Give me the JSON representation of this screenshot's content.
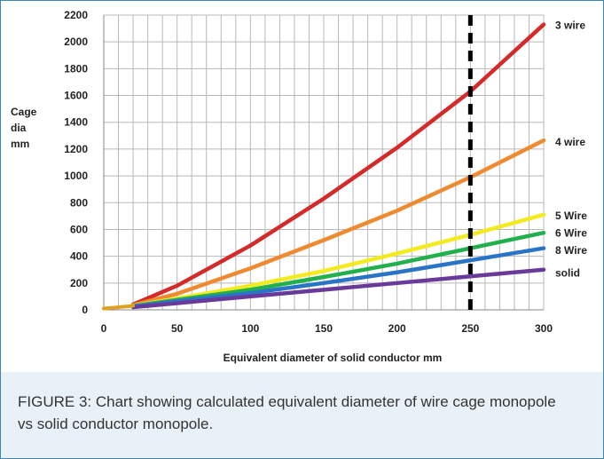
{
  "chart_data": {
    "type": "line",
    "xlabel": "Equivalent  diameter of solid conductor mm",
    "ylabel": [
      "Cage",
      "dia",
      "mm"
    ],
    "xlim": [
      0,
      300
    ],
    "ylim": [
      0,
      2200
    ],
    "xticks": [
      0,
      50,
      100,
      150,
      200,
      250,
      300
    ],
    "yticks": [
      0,
      200,
      400,
      600,
      800,
      1000,
      1200,
      1400,
      1600,
      1800,
      2000,
      2200
    ],
    "grid": true,
    "reference_line": {
      "x": 250,
      "style": "dashed",
      "color": "#000000"
    },
    "x": [
      20,
      50,
      100,
      150,
      200,
      250,
      300
    ],
    "series": [
      {
        "name": "3 wire",
        "values": [
          40,
          180,
          480,
          830,
          1210,
          1630,
          2130
        ],
        "color": "#d42a2a",
        "label_y": 2130
      },
      {
        "name": "4 wire",
        "values": [
          35,
          120,
          310,
          520,
          740,
          990,
          1265
        ],
        "color": "#f08a30",
        "label_y": 1260
      },
      {
        "name": "5 Wire",
        "values": [
          30,
          85,
          180,
          290,
          420,
          560,
          710
        ],
        "color": "#f4ea20",
        "label_y": 710
      },
      {
        "name": "6 Wire",
        "values": [
          28,
          75,
          150,
          245,
          345,
          460,
          575
        ],
        "color": "#22b04c",
        "label_y": 580
      },
      {
        "name": "8 Wire",
        "values": [
          25,
          65,
          125,
          200,
          280,
          370,
          460
        ],
        "color": "#2a74c8",
        "label_y": 450
      },
      {
        "name": "solid",
        "values": [
          20,
          50,
          100,
          150,
          200,
          250,
          300
        ],
        "color": "#6a3a9a",
        "label_y": 280
      }
    ]
  },
  "caption": "FIGURE 3: Chart showing calculated equivalent diameter of wire cage monopole vs solid conductor monopole."
}
